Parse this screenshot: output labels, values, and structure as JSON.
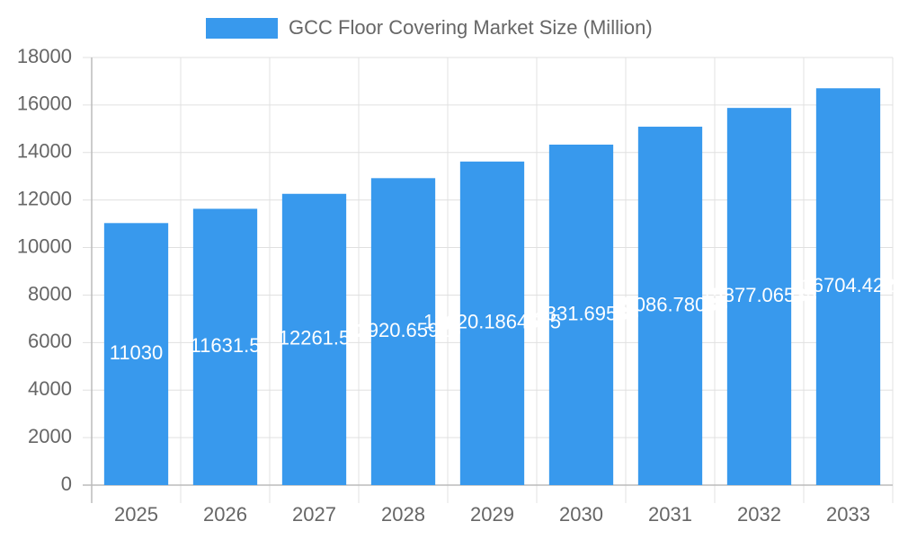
{
  "chart_data": {
    "type": "bar",
    "series": [
      {
        "name": "GCC Floor Covering Market Size (Million)",
        "color": "#3899ed",
        "values": [
          11030,
          11631.5,
          12261.5,
          12920.65925,
          13620.1864675,
          14331.69535,
          15086.78035,
          15877.06535,
          16704.422
        ]
      }
    ],
    "categories": [
      "2025",
      "2026",
      "2027",
      "2028",
      "2029",
      "2030",
      "2031",
      "2032",
      "2033"
    ],
    "ylim": [
      0,
      18000
    ],
    "yticks": [
      0,
      2000,
      4000,
      6000,
      8000,
      10000,
      12000,
      14000,
      16000,
      18000
    ],
    "grid": true,
    "legend": "top"
  }
}
